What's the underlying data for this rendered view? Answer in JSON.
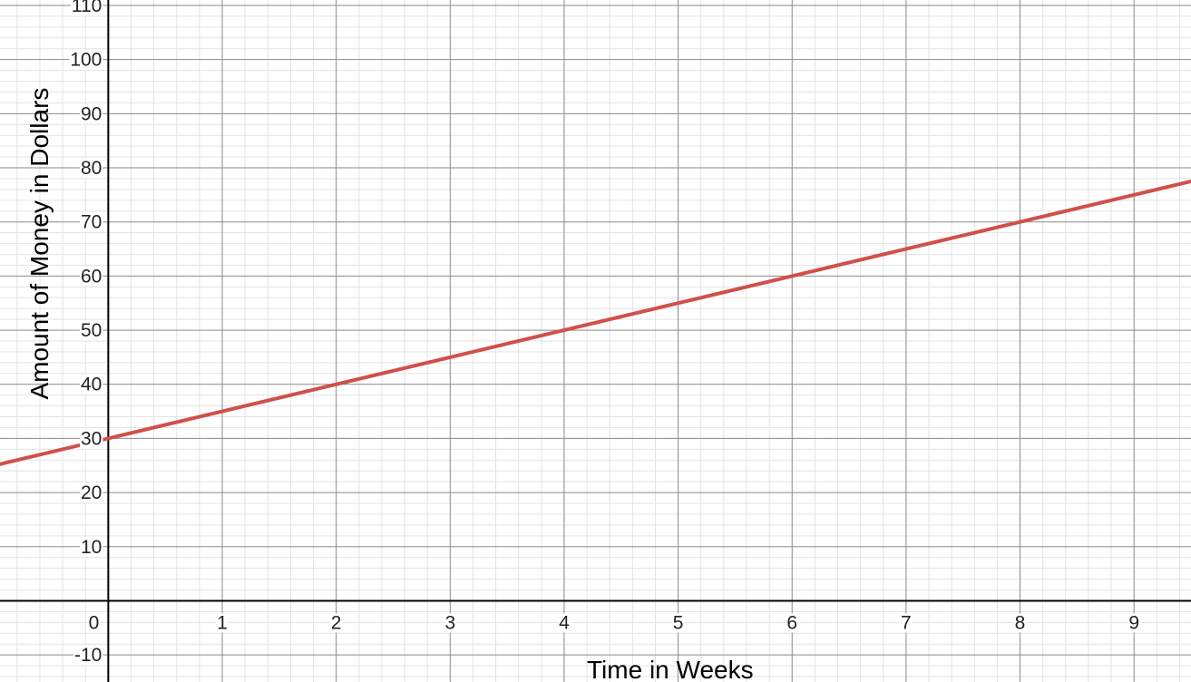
{
  "chart_data": {
    "type": "line",
    "title": "",
    "xlabel": "Time in Weeks",
    "ylabel": "Amount of Money in Dollars",
    "xlim": [
      -0.95,
      9.5
    ],
    "ylim": [
      -15,
      111
    ],
    "x_ticks": [
      "1",
      "2",
      "3",
      "4",
      "5",
      "6",
      "7",
      "8",
      "9"
    ],
    "y_ticks": [
      "-10",
      "10",
      "20",
      "30",
      "40",
      "50",
      "60",
      "70",
      "80",
      "90",
      "100",
      "110"
    ],
    "origin_label": "0",
    "grid": true,
    "minor_grid": true,
    "legend": "none",
    "series": [
      {
        "color": "#d0504a",
        "x": [
          0,
          1,
          2,
          3,
          4,
          5,
          6,
          7,
          8,
          9
        ],
        "y": [
          30,
          35,
          40,
          45,
          50,
          55,
          60,
          65,
          70,
          75
        ]
      }
    ]
  }
}
